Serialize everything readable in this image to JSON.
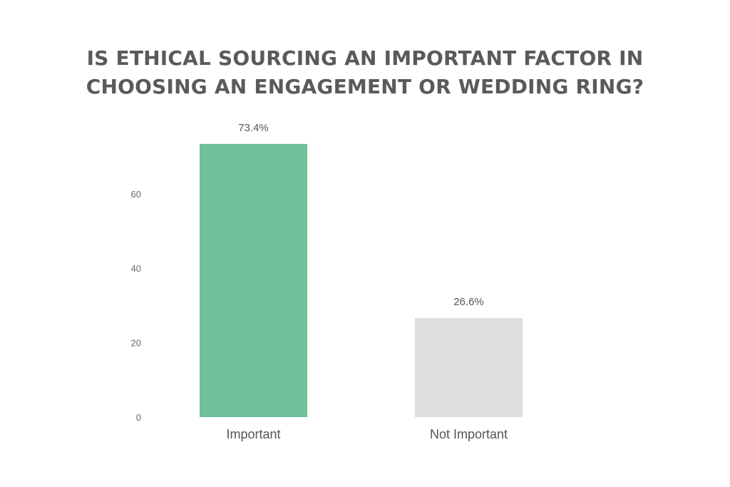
{
  "chart_data": {
    "type": "bar",
    "title_lines": [
      "IS ETHICAL SOURCING AN IMPORTANT FACTOR IN",
      "CHOOSING AN ENGAGEMENT OR WEDDING RING?"
    ],
    "categories": [
      "Important",
      "Not Important"
    ],
    "values": [
      73.4,
      26.6
    ],
    "value_labels": [
      "73.4%",
      "26.6%"
    ],
    "colors": [
      "#6fbf98",
      "#dedede"
    ],
    "yticks": [
      0,
      20,
      40,
      60
    ],
    "ylim": [
      0,
      80
    ],
    "xlabel": "",
    "ylabel": "",
    "grid": false,
    "legend": "none"
  }
}
